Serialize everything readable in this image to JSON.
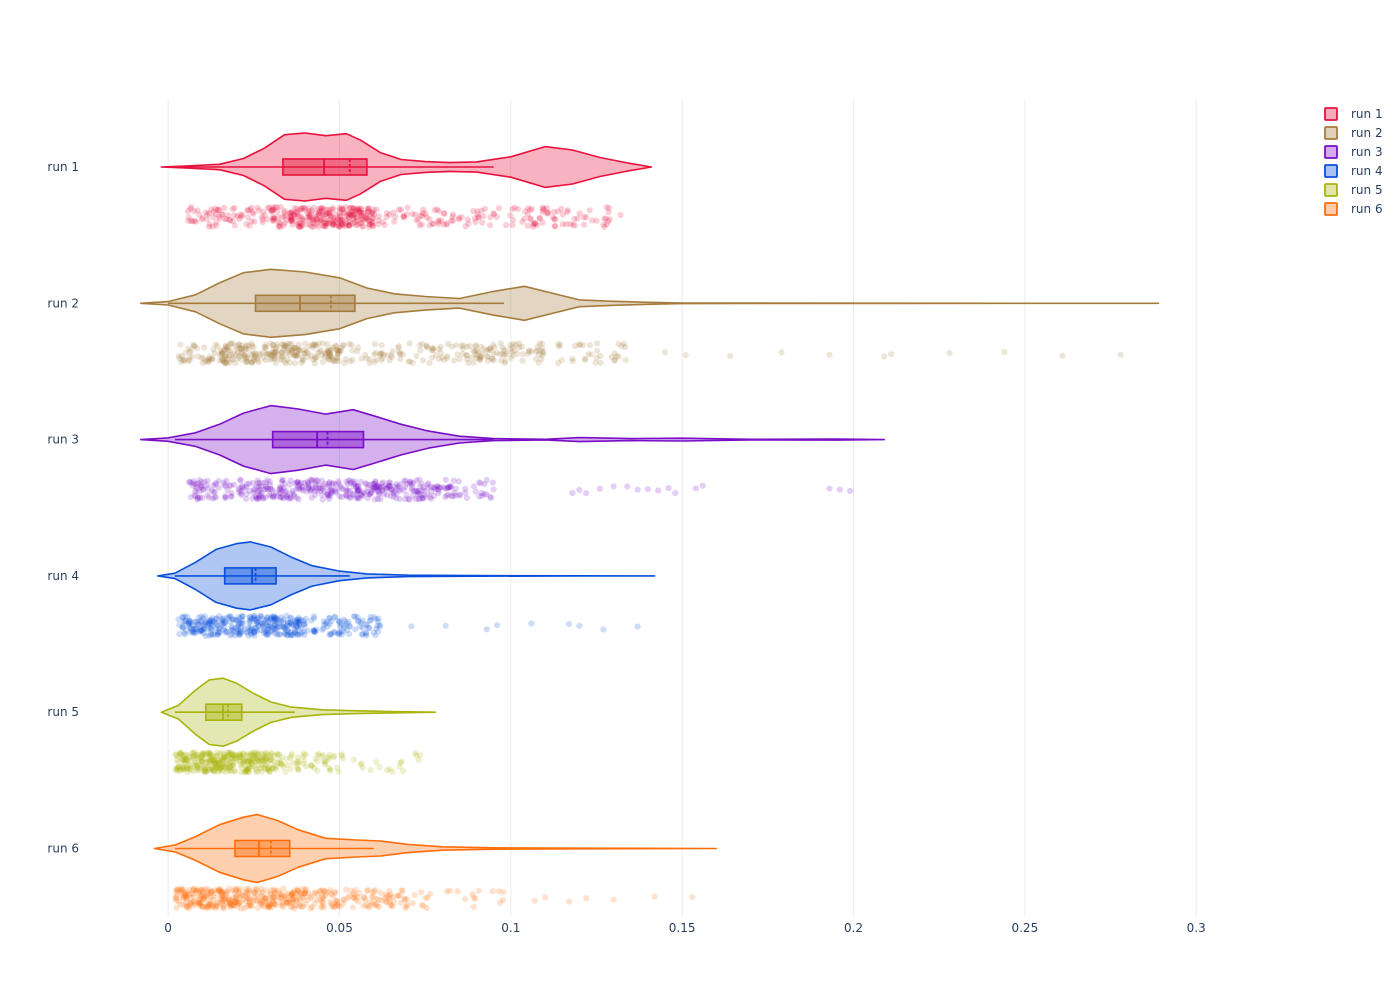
{
  "chart_data": {
    "type": "violin",
    "orientation": "horizontal",
    "title": "",
    "xlabel": "",
    "ylabel": "",
    "xlim": [
      -0.0085,
      0.3265
    ],
    "x_ticks": [
      0,
      0.05,
      0.1,
      0.15,
      0.2,
      0.25,
      0.3
    ],
    "x_tick_labels": [
      "0",
      "0.05",
      "0.1",
      "0.15",
      "0.2",
      "0.25",
      "0.3"
    ],
    "grid": true,
    "legend_position": "top-right",
    "series": [
      {
        "name": "run 1",
        "color": "#e8113c",
        "min": -0.002,
        "max": 0.141,
        "q1": 0.0335,
        "median": 0.0455,
        "q3": 0.058,
        "mean": 0.053,
        "whisker_low": 0.003,
        "whisker_high": 0.095,
        "density": [
          [
            -0.002,
            0
          ],
          [
            0.005,
            0.03
          ],
          [
            0.015,
            0.08
          ],
          [
            0.022,
            0.25
          ],
          [
            0.028,
            0.55
          ],
          [
            0.034,
            0.95
          ],
          [
            0.04,
            1.0
          ],
          [
            0.046,
            0.92
          ],
          [
            0.052,
            0.98
          ],
          [
            0.056,
            0.8
          ],
          [
            0.062,
            0.42
          ],
          [
            0.068,
            0.22
          ],
          [
            0.075,
            0.16
          ],
          [
            0.082,
            0.13
          ],
          [
            0.09,
            0.15
          ],
          [
            0.1,
            0.3
          ],
          [
            0.11,
            0.6
          ],
          [
            0.118,
            0.5
          ],
          [
            0.126,
            0.28
          ],
          [
            0.134,
            0.12
          ],
          [
            0.141,
            0
          ]
        ],
        "points": {
          "seed": 11,
          "segments": [
            [
              0.005,
              0.03,
              0.15
            ],
            [
              0.03,
              0.06,
              0.55
            ],
            [
              0.06,
              0.095,
              0.15
            ],
            [
              0.095,
              0.13,
              0.15
            ]
          ],
          "extras": [
            0.132
          ],
          "count": 480
        }
      },
      {
        "name": "run 2",
        "color": "#a67c3d",
        "min": -0.008,
        "max": 0.289,
        "q1": 0.0255,
        "median": 0.0385,
        "q3": 0.0545,
        "mean": 0.0475,
        "whisker_low": 0.0,
        "whisker_high": 0.098,
        "density": [
          [
            -0.008,
            0
          ],
          [
            0.0,
            0.05
          ],
          [
            0.008,
            0.25
          ],
          [
            0.015,
            0.6
          ],
          [
            0.022,
            0.9
          ],
          [
            0.03,
            1.0
          ],
          [
            0.04,
            0.92
          ],
          [
            0.05,
            0.75
          ],
          [
            0.058,
            0.45
          ],
          [
            0.066,
            0.28
          ],
          [
            0.075,
            0.2
          ],
          [
            0.085,
            0.14
          ],
          [
            0.095,
            0.35
          ],
          [
            0.104,
            0.5
          ],
          [
            0.112,
            0.3
          ],
          [
            0.12,
            0.1
          ],
          [
            0.13,
            0.06
          ],
          [
            0.14,
            0.03
          ],
          [
            0.15,
            0.01
          ],
          [
            0.2,
            0.004
          ],
          [
            0.289,
            0
          ]
        ],
        "points": {
          "seed": 22,
          "segments": [
            [
              0.003,
              0.015,
              0.08
            ],
            [
              0.015,
              0.05,
              0.5
            ],
            [
              0.05,
              0.09,
              0.2
            ],
            [
              0.09,
              0.11,
              0.15
            ],
            [
              0.11,
              0.135,
              0.07
            ]
          ],
          "extras": [
            0.145,
            0.151,
            0.164,
            0.179,
            0.193,
            0.209,
            0.211,
            0.228,
            0.244,
            0.261,
            0.278
          ],
          "count": 470
        }
      },
      {
        "name": "run 3",
        "color": "#7a0dc6",
        "min": -0.008,
        "max": 0.209,
        "q1": 0.0305,
        "median": 0.0435,
        "q3": 0.057,
        "mean": 0.0465,
        "whisker_low": 0.002,
        "whisker_high": 0.095,
        "density": [
          [
            -0.008,
            0
          ],
          [
            0.0,
            0.05
          ],
          [
            0.008,
            0.2
          ],
          [
            0.015,
            0.45
          ],
          [
            0.022,
            0.78
          ],
          [
            0.03,
            1.0
          ],
          [
            0.038,
            0.9
          ],
          [
            0.046,
            0.75
          ],
          [
            0.054,
            0.88
          ],
          [
            0.06,
            0.7
          ],
          [
            0.068,
            0.45
          ],
          [
            0.076,
            0.25
          ],
          [
            0.085,
            0.1
          ],
          [
            0.095,
            0.03
          ],
          [
            0.11,
            0.01
          ],
          [
            0.12,
            0.06
          ],
          [
            0.135,
            0.03
          ],
          [
            0.15,
            0.04
          ],
          [
            0.17,
            0.01
          ],
          [
            0.195,
            0.015
          ],
          [
            0.209,
            0
          ]
        ],
        "points": {
          "seed": 33,
          "segments": [
            [
              0.006,
              0.02,
              0.12
            ],
            [
              0.02,
              0.065,
              0.55
            ],
            [
              0.065,
              0.085,
              0.2
            ],
            [
              0.085,
              0.095,
              0.04
            ]
          ],
          "extras": [
            0.118,
            0.12,
            0.122,
            0.126,
            0.13,
            0.134,
            0.137,
            0.14,
            0.143,
            0.146,
            0.148,
            0.154,
            0.156,
            0.193,
            0.196,
            0.199
          ],
          "count": 480
        }
      },
      {
        "name": "run 4",
        "color": "#0a4fdc",
        "min": -0.003,
        "max": 0.142,
        "q1": 0.0165,
        "median": 0.0245,
        "q3": 0.0315,
        "mean": 0.0255,
        "whisker_low": 0.002,
        "whisker_high": 0.053,
        "density": [
          [
            -0.003,
            0
          ],
          [
            0.002,
            0.08
          ],
          [
            0.008,
            0.4
          ],
          [
            0.014,
            0.78
          ],
          [
            0.02,
            0.95
          ],
          [
            0.024,
            1.0
          ],
          [
            0.03,
            0.85
          ],
          [
            0.036,
            0.55
          ],
          [
            0.042,
            0.3
          ],
          [
            0.05,
            0.14
          ],
          [
            0.058,
            0.06
          ],
          [
            0.07,
            0.02
          ],
          [
            0.09,
            0.008
          ],
          [
            0.12,
            0.004
          ],
          [
            0.142,
            0
          ]
        ],
        "points": {
          "seed": 44,
          "segments": [
            [
              0.003,
              0.04,
              0.75
            ],
            [
              0.04,
              0.062,
              0.2
            ]
          ],
          "extras": [
            0.071,
            0.081,
            0.093,
            0.096,
            0.106,
            0.117,
            0.12,
            0.127,
            0.137
          ],
          "count": 420
        }
      },
      {
        "name": "run 5",
        "color": "#a8b40c",
        "min": -0.002,
        "max": 0.078,
        "q1": 0.011,
        "median": 0.016,
        "q3": 0.0215,
        "mean": 0.0175,
        "whisker_low": 0.002,
        "whisker_high": 0.037,
        "density": [
          [
            -0.002,
            0
          ],
          [
            0.003,
            0.2
          ],
          [
            0.008,
            0.65
          ],
          [
            0.012,
            0.95
          ],
          [
            0.016,
            1.0
          ],
          [
            0.02,
            0.85
          ],
          [
            0.025,
            0.55
          ],
          [
            0.03,
            0.3
          ],
          [
            0.036,
            0.15
          ],
          [
            0.045,
            0.07
          ],
          [
            0.055,
            0.04
          ],
          [
            0.065,
            0.02
          ],
          [
            0.078,
            0
          ]
        ],
        "points": {
          "seed": 55,
          "segments": [
            [
              0.002,
              0.032,
              0.82
            ],
            [
              0.032,
              0.05,
              0.13
            ],
            [
              0.05,
              0.075,
              0.05
            ]
          ],
          "extras": [],
          "count": 420
        }
      },
      {
        "name": "run 6",
        "color": "#ff6e0a",
        "min": -0.004,
        "max": 0.16,
        "q1": 0.0195,
        "median": 0.0265,
        "q3": 0.0355,
        "mean": 0.03,
        "whisker_low": 0.002,
        "whisker_high": 0.06,
        "density": [
          [
            -0.004,
            0
          ],
          [
            0.002,
            0.1
          ],
          [
            0.008,
            0.35
          ],
          [
            0.015,
            0.7
          ],
          [
            0.022,
            0.92
          ],
          [
            0.026,
            1.0
          ],
          [
            0.032,
            0.82
          ],
          [
            0.038,
            0.55
          ],
          [
            0.046,
            0.3
          ],
          [
            0.055,
            0.25
          ],
          [
            0.062,
            0.22
          ],
          [
            0.07,
            0.12
          ],
          [
            0.08,
            0.05
          ],
          [
            0.095,
            0.02
          ],
          [
            0.12,
            0.008
          ],
          [
            0.16,
            0
          ]
        ],
        "points": {
          "seed": 66,
          "segments": [
            [
              0.002,
              0.04,
              0.7
            ],
            [
              0.04,
              0.07,
              0.25
            ],
            [
              0.07,
              0.098,
              0.05
            ]
          ],
          "extras": [
            0.107,
            0.11,
            0.117,
            0.122,
            0.13,
            0.142,
            0.153
          ],
          "count": 460
        }
      }
    ]
  }
}
